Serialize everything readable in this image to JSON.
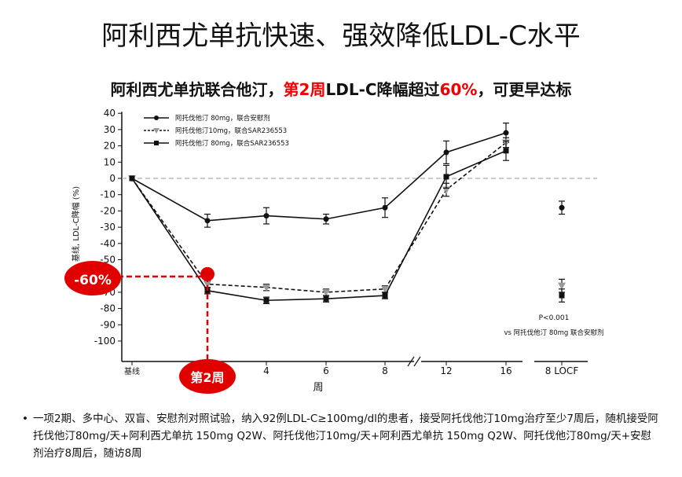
{
  "page": {
    "title": "阿利西尤单抗快速、强效降低LDL-C水平",
    "subtitle": {
      "part1": "阿利西尤单抗联合他汀，",
      "part2_red": "第2周",
      "part3": "LDL-C降幅超过",
      "part4_red": "60%",
      "part5": "，可更早达标"
    },
    "footnote": "一项2期、多中心、双盲、安慰剂对照试验，纳入92例LDL-C≥100mg/dl的患者，接受阿托伐他汀10mg治疗至少7周后，随机接受阿托伐他汀80mg/天+阿利西尤单抗 150mg Q2W、阿托伐他汀10mg/天+阿利西尤单抗 150mg Q2W、阿托伐他汀80mg/天+安慰剂治疗8周后，随访8周"
  },
  "chart_data": {
    "type": "line",
    "xlabel": "周",
    "ylabel": "基线, LDL-C降幅 (%)",
    "x_tick_labels": [
      "基线",
      "2",
      "4",
      "6",
      "8",
      "12",
      "16",
      "8 LOCF"
    ],
    "x": [
      0,
      2,
      4,
      6,
      8,
      12,
      16
    ],
    "ylim": [
      -100,
      40
    ],
    "y_ticks": [
      40,
      30,
      20,
      10,
      0,
      -10,
      -20,
      -30,
      -40,
      -50,
      -60,
      -70,
      -80,
      -90,
      -100
    ],
    "series": [
      {
        "name": "阿托伐他汀 80mg，联合安慰剂",
        "marker": "circle",
        "line": "solid",
        "color": "#111111",
        "values": [
          0,
          -26,
          -23,
          -25,
          -18,
          16,
          28
        ],
        "err": [
          0,
          4,
          5,
          3,
          6,
          7,
          6
        ],
        "locf": -18
      },
      {
        "name": "阿托伐他汀10mg，联合SAR236553",
        "marker": "triangle-down",
        "line": "dashed",
        "color": "#999999",
        "values": [
          0,
          -65,
          -67,
          -70,
          -68,
          -7,
          22
        ],
        "err": [
          0,
          2,
          2,
          2,
          2,
          4,
          3
        ],
        "locf": -66
      },
      {
        "name": "阿托伐他汀 80mg，联合SAR236553",
        "marker": "square",
        "line": "solid",
        "color": "#111111",
        "values": [
          0,
          -69,
          -75,
          -74,
          -72,
          1,
          17
        ],
        "err": [
          0,
          2,
          2,
          2,
          2,
          7,
          6
        ],
        "locf": -72
      }
    ],
    "annotations": {
      "callout_value": "-60%",
      "callout_week": "第2周",
      "stat_line1": "P<0.001",
      "stat_line2": "vs 阿托伐他汀 80mg 联合安慰剂"
    },
    "grid": false,
    "legend": "top-left",
    "reference_line": 0,
    "colors": {
      "accent_red": "#e00000",
      "zero_line": "#aaaaaa"
    }
  }
}
